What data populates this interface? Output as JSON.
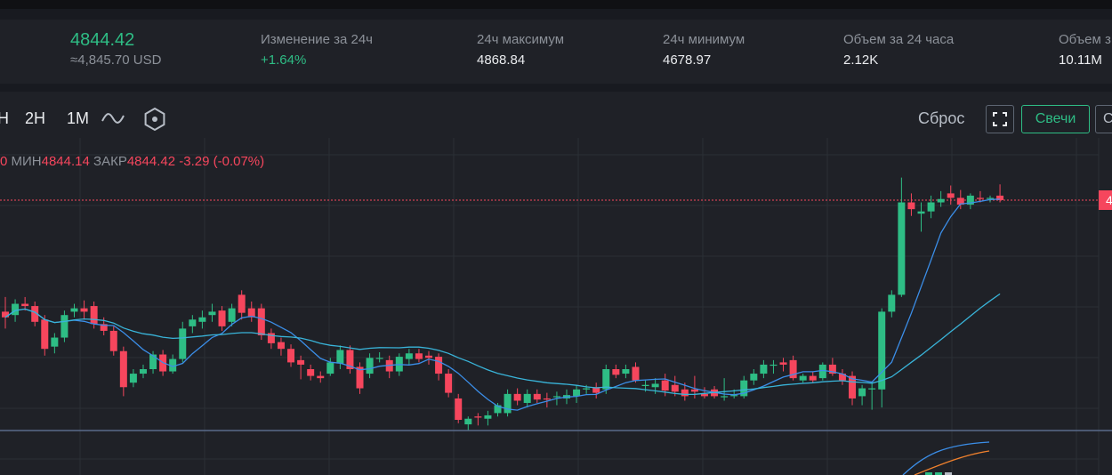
{
  "ticker": {
    "last_price": "4844.42",
    "last_price_usd": "≈4,845.70 USD",
    "change_label": "Изменение за 24ч",
    "change_value": "+1.64%",
    "high_label": "24ч максимум",
    "high_value": "4868.84",
    "low_label": "24ч минимум",
    "low_value": "4678.97",
    "volume_label": "Объем за 24 часа",
    "volume_value": "2.12K",
    "volume2_label": "Объем з",
    "volume2_value": "10.11M"
  },
  "toolbar": {
    "timeframes": [
      "H",
      "2H",
      "1M"
    ],
    "reset_label": "Сброс",
    "candles_label": "Свечи",
    "cut_label": "С",
    "line_icon": "line-chart-icon",
    "settings_icon": "hexagon-settings-icon",
    "fullscreen_icon": "fullscreen-icon"
  },
  "ohlc": {
    "leading": "0",
    "low_key": "МИН",
    "low_val": "4844.14",
    "close_key": "ЗАКР",
    "close_val": "4844.42",
    "change": "-3.29 (-0.07%)"
  },
  "price_tag": "4",
  "colors": {
    "up": "#2ebd85",
    "down": "#f6465d",
    "ma_fast": "#3b8ee8",
    "ma_slow": "#39b4d9",
    "ma_orange": "#f0812d"
  },
  "chart_data": {
    "type": "candlestick",
    "series": [
      {
        "name": "",
        "values": [
          [
            4745,
            4740,
            4758,
            4730
          ],
          [
            4742,
            4752,
            4756,
            4736
          ],
          [
            4752,
            4750,
            4758,
            4746
          ],
          [
            4750,
            4736,
            4754,
            4732
          ],
          [
            4738,
            4712,
            4742,
            4706
          ],
          [
            4714,
            4722,
            4726,
            4708
          ],
          [
            4722,
            4742,
            4746,
            4718
          ],
          [
            4745,
            4748,
            4752,
            4740
          ],
          [
            4748,
            4745,
            4755,
            4738
          ],
          [
            4750,
            4734,
            4754,
            4730
          ],
          [
            4734,
            4728,
            4740,
            4724
          ],
          [
            4728,
            4710,
            4732,
            4706
          ],
          [
            4710,
            4678,
            4714,
            4670
          ],
          [
            4682,
            4690,
            4694,
            4678
          ],
          [
            4690,
            4694,
            4698,
            4686
          ],
          [
            4694,
            4707,
            4710,
            4690
          ],
          [
            4707,
            4692,
            4711,
            4688
          ],
          [
            4692,
            4703,
            4707,
            4690
          ],
          [
            4703,
            4730,
            4736,
            4700
          ],
          [
            4732,
            4738,
            4742,
            4726
          ],
          [
            4736,
            4740,
            4746,
            4730
          ],
          [
            4742,
            4745,
            4752,
            4736
          ],
          [
            4746,
            4732,
            4750,
            4728
          ],
          [
            4736,
            4748,
            4752,
            4732
          ],
          [
            4760,
            4744,
            4764,
            4738
          ],
          [
            4748,
            4740,
            4754,
            4736
          ],
          [
            4748,
            4724,
            4752,
            4720
          ],
          [
            4726,
            4717,
            4730,
            4712
          ],
          [
            4718,
            4712,
            4722,
            4706
          ],
          [
            4712,
            4700,
            4716,
            4696
          ],
          [
            4702,
            4698,
            4706,
            4685
          ],
          [
            4694,
            4688,
            4698,
            4684
          ],
          [
            4688,
            4686,
            4692,
            4682
          ],
          [
            4690,
            4700,
            4704,
            4688
          ],
          [
            4699,
            4711,
            4715,
            4694
          ],
          [
            4711,
            4694,
            4715,
            4690
          ],
          [
            4696,
            4677,
            4700,
            4672
          ],
          [
            4690,
            4704,
            4708,
            4686
          ],
          [
            4704,
            4704,
            4709,
            4700
          ],
          [
            4702,
            4692,
            4706,
            4686
          ],
          [
            4692,
            4705,
            4708,
            4688
          ],
          [
            4703,
            4708,
            4712,
            4698
          ],
          [
            4708,
            4703,
            4712,
            4700
          ],
          [
            4706,
            4704,
            4710,
            4698
          ],
          [
            4705,
            4690,
            4708,
            4684
          ],
          [
            4690,
            4673,
            4694,
            4669
          ],
          [
            4668,
            4649,
            4672,
            4646
          ],
          [
            4645,
            4650,
            4652,
            4640
          ],
          [
            4652,
            4651,
            4655,
            4644
          ],
          [
            4650,
            4653,
            4657,
            4644
          ],
          [
            4655,
            4662,
            4664,
            4652
          ],
          [
            4655,
            4672,
            4676,
            4652
          ],
          [
            4672,
            4666,
            4677,
            4662
          ],
          [
            4664,
            4672,
            4676,
            4660
          ],
          [
            4672,
            4667,
            4676,
            4664
          ],
          [
            4668,
            4667,
            4673,
            4660
          ],
          [
            4670,
            4670,
            4674,
            4662
          ],
          [
            4668,
            4671,
            4676,
            4663
          ],
          [
            4670,
            4676,
            4680,
            4664
          ],
          [
            4676,
            4677,
            4680,
            4672
          ],
          [
            4678,
            4673,
            4682,
            4668
          ],
          [
            4676,
            4694,
            4698,
            4672
          ],
          [
            4694,
            4689,
            4698,
            4686
          ],
          [
            4690,
            4694,
            4698,
            4686
          ],
          [
            4696,
            4684,
            4700,
            4682
          ],
          [
            4679,
            4680,
            4684,
            4674
          ],
          [
            4678,
            4681,
            4686,
            4672
          ],
          [
            4684,
            4675,
            4690,
            4670
          ],
          [
            4680,
            4674,
            4688,
            4670
          ],
          [
            4676,
            4670,
            4682,
            4666
          ],
          [
            4676,
            4674,
            4688,
            4668
          ],
          [
            4672,
            4670,
            4678,
            4668
          ],
          [
            4676,
            4670,
            4679,
            4668
          ],
          [
            4670,
            4670,
            4686,
            4666
          ],
          [
            4670,
            4671,
            4676,
            4668
          ],
          [
            4670,
            4684,
            4688,
            4668
          ],
          [
            4684,
            4690,
            4694,
            4680
          ],
          [
            4690,
            4698,
            4702,
            4686
          ],
          [
            4698,
            4698,
            4702,
            4690
          ],
          [
            4700,
            4698,
            4704,
            4692
          ],
          [
            4702,
            4686,
            4706,
            4684
          ],
          [
            4684,
            4688,
            4690,
            4682
          ],
          [
            4688,
            4684,
            4692,
            4682
          ],
          [
            4686,
            4698,
            4700,
            4684
          ],
          [
            4698,
            4690,
            4704,
            4688
          ],
          [
            4690,
            4684,
            4694,
            4680
          ],
          [
            4688,
            4668,
            4692,
            4662
          ],
          [
            4670,
            4677,
            4680,
            4662
          ],
          [
            4676,
            4677,
            4682,
            4658
          ],
          [
            4676,
            4745,
            4748,
            4660
          ],
          [
            4745,
            4760,
            4764,
            4740
          ],
          [
            4760,
            4842,
            4864,
            4758
          ],
          [
            4842,
            4836,
            4850,
            4830
          ],
          [
            4832,
            4834,
            4842,
            4816
          ],
          [
            4834,
            4842,
            4848,
            4828
          ],
          [
            4842,
            4845,
            4852,
            4838
          ],
          [
            4850,
            4846,
            4857,
            4840
          ],
          [
            4846,
            4840,
            4853,
            4836
          ],
          [
            4840,
            4848,
            4850,
            4836
          ],
          [
            4846,
            4845,
            4852,
            4842
          ],
          [
            4846,
            4846,
            4848,
            4842
          ],
          [
            4848,
            4844,
            4858,
            4842
          ]
        ]
      }
    ]
  }
}
